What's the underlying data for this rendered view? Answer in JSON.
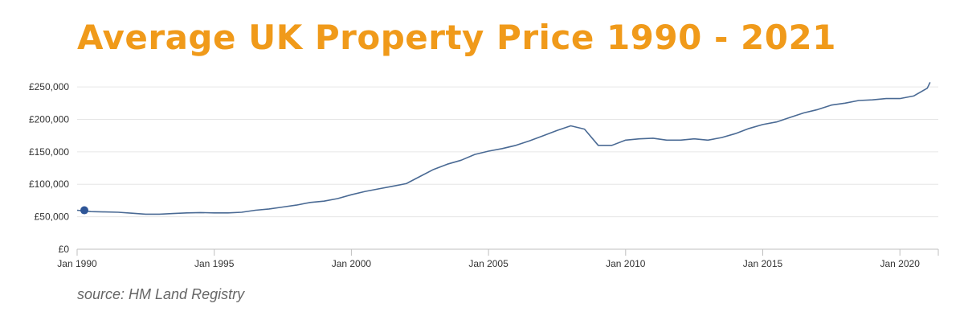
{
  "chart_data": {
    "type": "line",
    "title": "Average UK Property Price 1990 - 2021",
    "xlabel": "",
    "ylabel": "",
    "xlim": [
      1990.0,
      2021.4
    ],
    "ylim": [
      0,
      260000
    ],
    "y_ticks": [
      0,
      50000,
      100000,
      150000,
      200000,
      250000
    ],
    "y_tick_labels": [
      "£0",
      "£50,000",
      "£100,000",
      "£150,000",
      "£200,000",
      "£250,000"
    ],
    "x_ticks": [
      1990,
      1995,
      2000,
      2005,
      2010,
      2015,
      2020
    ],
    "x_tick_labels": [
      "Jan 1990",
      "Jan 1995",
      "Jan 2000",
      "Jan 2005",
      "Jan 2010",
      "Jan 2015",
      "Jan 2020"
    ],
    "grid": true,
    "line_color": "#4a6a94",
    "marker_color": "#2e5597",
    "title_color": "#f09a1a",
    "series": [
      {
        "x": [
          1990.0,
          1990.5,
          1991.0,
          1991.5,
          1992.0,
          1992.5,
          1993.0,
          1993.5,
          1994.0,
          1994.5,
          1995.0,
          1995.5,
          1996.0,
          1996.5,
          1997.0,
          1997.5,
          1998.0,
          1998.5,
          1999.0,
          1999.5,
          2000.0,
          2000.5,
          2001.0,
          2001.5,
          2002.0,
          2002.5,
          2003.0,
          2003.5,
          2004.0,
          2004.5,
          2005.0,
          2005.5,
          2006.0,
          2006.5,
          2007.0,
          2007.5,
          2008.0,
          2008.5,
          2009.0,
          2009.5,
          2010.0,
          2010.5,
          2011.0,
          2011.5,
          2012.0,
          2012.5,
          2013.0,
          2013.5,
          2014.0,
          2014.5,
          2015.0,
          2015.5,
          2016.0,
          2016.5,
          2017.0,
          2017.5,
          2018.0,
          2018.5,
          2019.0,
          2019.5,
          2020.0,
          2020.5,
          2021.0,
          2021.1
        ],
        "values": [
          60000,
          58000,
          57500,
          57000,
          55500,
          54000,
          54000,
          55000,
          56000,
          56500,
          56000,
          56000,
          57000,
          60000,
          62000,
          65000,
          68000,
          72000,
          74000,
          78000,
          84000,
          89000,
          93000,
          97000,
          101000,
          112000,
          123000,
          131000,
          137000,
          146000,
          151000,
          155000,
          160000,
          167000,
          175000,
          183000,
          190000,
          185000,
          160000,
          160000,
          168000,
          170000,
          171000,
          168000,
          168000,
          170000,
          168000,
          172000,
          178000,
          186000,
          192000,
          196000,
          203000,
          210000,
          215000,
          222000,
          225000,
          229000,
          230000,
          232000,
          232000,
          236000,
          248000,
          257000
        ]
      }
    ]
  },
  "source": "source: HM Land Registry"
}
